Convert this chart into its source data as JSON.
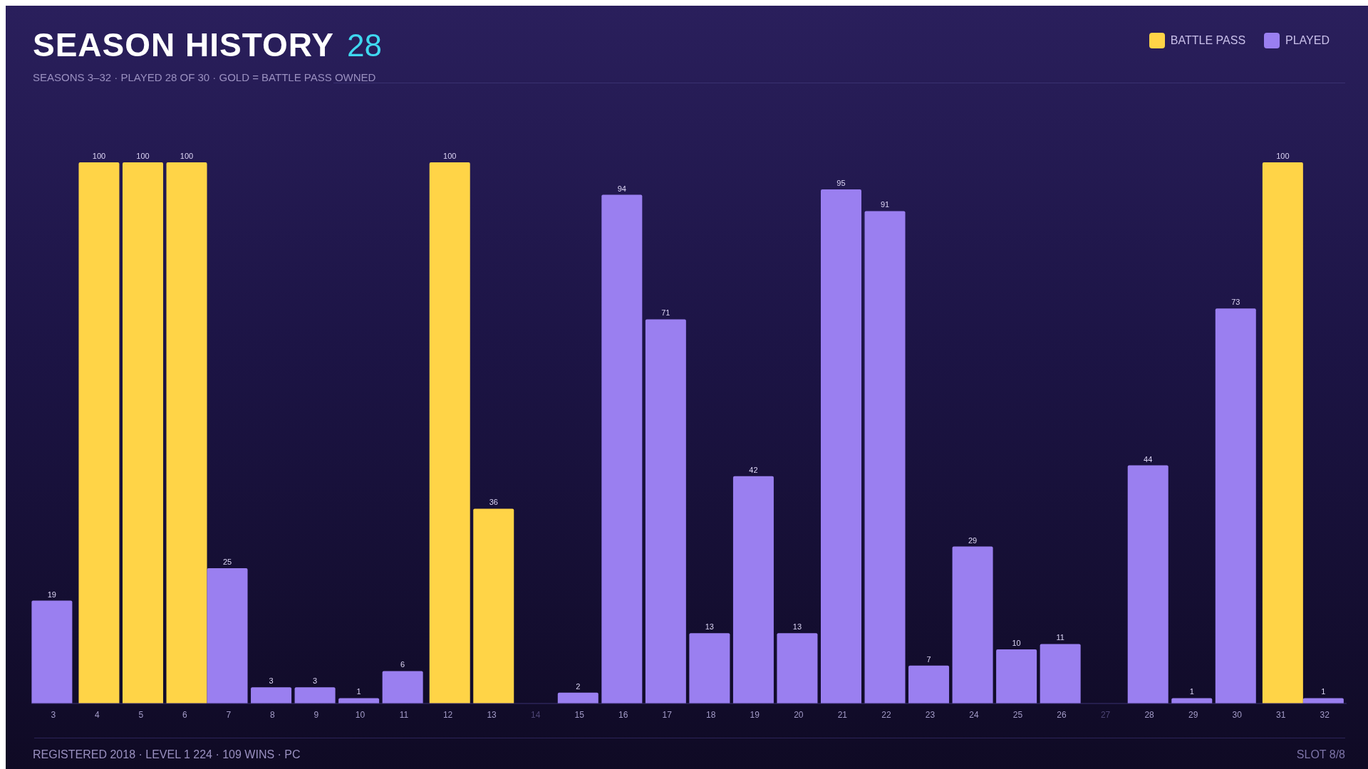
{
  "chart_data": {
    "type": "bar",
    "title": "SEASON HISTORY",
    "subtitle": "SEASONS 3–32 · PLAYED 28 OF 30 · GOLD = BATTLE PASS OWNED",
    "categories": [
      "3",
      "4",
      "5",
      "6",
      "7",
      "8",
      "9",
      "10",
      "11",
      "12",
      "13",
      "14",
      "15",
      "16",
      "17",
      "18",
      "19",
      "20",
      "21",
      "22",
      "23",
      "24",
      "25",
      "26",
      "27",
      "28",
      "29",
      "30",
      "31",
      "32"
    ],
    "series": [
      {
        "name": "BATTLE PASS",
        "color": "#ffd447",
        "values": [
          null,
          100,
          100,
          100,
          null,
          null,
          null,
          null,
          null,
          100,
          36,
          null,
          null,
          null,
          null,
          null,
          null,
          null,
          null,
          null,
          null,
          null,
          null,
          null,
          null,
          null,
          null,
          null,
          100,
          null
        ]
      },
      {
        "name": "PLAYED",
        "color": "#9a7ff0",
        "values": [
          19,
          null,
          null,
          null,
          25,
          3,
          3,
          1,
          6,
          null,
          null,
          null,
          2,
          94,
          71,
          13,
          42,
          13,
          95,
          91,
          7,
          29,
          10,
          11,
          null,
          44,
          1,
          73,
          null,
          1
        ]
      }
    ],
    "data_labels": true,
    "legend": "top right",
    "tick_labels": "x",
    "annotations": [
      "28",
      "REGISTERED 2018 · LEVEL 1 224 · 109 WINS · PC",
      "SLOT 8/8"
    ]
  }
}
